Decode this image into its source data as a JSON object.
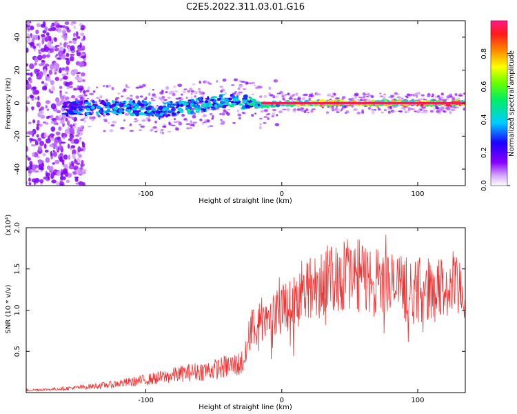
{
  "figure": {
    "title": "C2E5.2022.311.03.01.G16"
  },
  "chart_data": [
    {
      "type": "heatmap",
      "title": "C2E5.2022.311.03.01.G16",
      "xlabel": "Height of straight line (km)",
      "ylabel": "Frequency (Hz)",
      "xlim": [
        -188,
        135
      ],
      "ylim": [
        -50,
        50
      ],
      "x_ticks": [
        -100,
        0,
        100
      ],
      "x_tick_labels": [
        "-100",
        "0",
        "100"
      ],
      "y_ticks": [
        -40,
        -20,
        0,
        20,
        40
      ],
      "y_tick_labels": [
        "-40",
        "-20",
        "0",
        "20",
        "40"
      ],
      "grid": false,
      "colorbar": {
        "label": "Normalized spectral amplitude",
        "range": [
          0,
          1
        ],
        "ticks": [
          0,
          0.2,
          0.4,
          0.6,
          0.8
        ],
        "tick_labels": [
          "0.0",
          "0.2",
          "0.4",
          "0.6",
          "0.8"
        ],
        "colormap": "rainbow (white-purple-blue-cyan-green-yellow-orange-red-pink)"
      },
      "centerline": {
        "x": [
          -160,
          -140,
          -120,
          -100,
          -90,
          -80,
          -70,
          -60,
          -50,
          -40,
          -30,
          -20,
          -10,
          0,
          20,
          40,
          60,
          80,
          100,
          120,
          135
        ],
        "y": [
          -3,
          -3,
          -3,
          -3,
          -5,
          -3,
          -2,
          -1,
          0,
          2,
          1,
          -1,
          -1,
          0,
          0,
          0,
          0,
          0,
          0,
          0,
          0
        ],
        "amplitude": [
          0.35,
          0.4,
          0.45,
          0.45,
          0.4,
          0.45,
          0.5,
          0.5,
          0.5,
          0.5,
          0.5,
          0.55,
          0.6,
          0.8,
          0.85,
          0.85,
          0.85,
          0.9,
          0.95,
          0.95,
          0.95
        ]
      },
      "noise_region_x": [
        -188,
        -150
      ]
    },
    {
      "type": "line",
      "xlabel": "Height of straight line (km)",
      "ylabel": "SNR (10 * v/v)",
      "y_multiplier": "(x10⁴)",
      "xlim": [
        -188,
        135
      ],
      "ylim": [
        0,
        2.0
      ],
      "x_ticks": [
        -100,
        0,
        100
      ],
      "x_tick_labels": [
        "-100",
        "0",
        "100"
      ],
      "y_ticks": [
        0.5,
        1.0,
        1.5,
        2.0
      ],
      "y_tick_labels": [
        "0.5",
        "1.0",
        "1.5",
        "2.0"
      ],
      "grid": false,
      "series": [
        {
          "color": "#ee3333",
          "x": [
            -188,
            -170,
            -150,
            -130,
            -110,
            -90,
            -70,
            -50,
            -40,
            -30,
            -26,
            -24,
            -20,
            -10,
            0,
            10,
            20,
            30,
            40,
            50,
            60,
            70,
            80,
            90,
            100,
            110,
            120,
            135
          ],
          "y": [
            0.03,
            0.04,
            0.06,
            0.09,
            0.13,
            0.18,
            0.24,
            0.28,
            0.32,
            0.35,
            0.45,
            0.7,
            0.85,
            0.95,
            1.05,
            1.1,
            1.25,
            1.35,
            1.4,
            1.45,
            1.4,
            1.35,
            1.3,
            1.25,
            1.25,
            1.25,
            1.25,
            1.25
          ]
        }
      ]
    }
  ]
}
